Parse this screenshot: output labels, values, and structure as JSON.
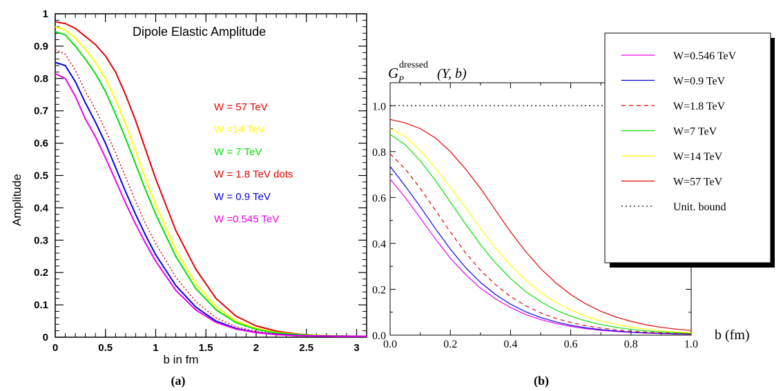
{
  "chart_data": [
    {
      "id": "a",
      "type": "line",
      "panel_label": "(a)",
      "title": "Dipole Elastic Amplitude",
      "xlabel": "b in fm",
      "ylabel": "Amplitude",
      "xlim": [
        0,
        3.1
      ],
      "ylim": [
        0,
        1.0
      ],
      "x_ticks": [
        "0",
        "0.5",
        "1",
        "1.5",
        "2",
        "2.5",
        "3"
      ],
      "y_ticks": [
        "0",
        "0.1",
        "0.2",
        "0.3",
        "0.4",
        "0.5",
        "0.6",
        "0.7",
        "0.8",
        "0.9",
        "1"
      ],
      "legend_position": "inside right",
      "series": [
        {
          "name": "W = 57 TeV",
          "color": "#e00000",
          "dash": "solid",
          "x": [
            0,
            0.1,
            0.2,
            0.3,
            0.4,
            0.5,
            0.6,
            0.7,
            0.8,
            0.9,
            1.0,
            1.2,
            1.4,
            1.6,
            1.8,
            2.0,
            2.2,
            2.4,
            2.6,
            2.8,
            3.0,
            3.1
          ],
          "y": [
            0.975,
            0.97,
            0.955,
            0.93,
            0.905,
            0.87,
            0.82,
            0.75,
            0.67,
            0.58,
            0.49,
            0.33,
            0.21,
            0.12,
            0.065,
            0.035,
            0.019,
            0.01,
            0.006,
            0.004,
            0.003,
            0.003
          ]
        },
        {
          "name": "W =14 TeV",
          "color": "#ffff00",
          "dash": "solid",
          "x": [
            0,
            0.1,
            0.2,
            0.3,
            0.4,
            0.5,
            0.6,
            0.7,
            0.8,
            0.9,
            1.0,
            1.2,
            1.4,
            1.6,
            1.8,
            2.0,
            2.2,
            2.4,
            2.6,
            2.8,
            3.0,
            3.1
          ],
          "y": [
            0.96,
            0.95,
            0.925,
            0.89,
            0.85,
            0.8,
            0.735,
            0.66,
            0.575,
            0.49,
            0.41,
            0.27,
            0.165,
            0.095,
            0.05,
            0.027,
            0.015,
            0.009,
            0.006,
            0.004,
            0.003,
            0.003
          ]
        },
        {
          "name": "W = 7 TeV",
          "color": "#00e000",
          "dash": "solid",
          "x": [
            0,
            0.1,
            0.2,
            0.3,
            0.4,
            0.5,
            0.6,
            0.7,
            0.8,
            0.9,
            1.0,
            1.2,
            1.4,
            1.6,
            1.8,
            2.0,
            2.2,
            2.4,
            2.6,
            2.8,
            3.0,
            3.1
          ],
          "y": [
            0.945,
            0.935,
            0.9,
            0.86,
            0.815,
            0.76,
            0.69,
            0.615,
            0.535,
            0.455,
            0.38,
            0.25,
            0.15,
            0.085,
            0.045,
            0.024,
            0.013,
            0.008,
            0.005,
            0.004,
            0.003,
            0.003
          ]
        },
        {
          "name": "W = 1.8 TeV dots",
          "color": "#e00000",
          "dash": "dotted",
          "x": [
            0,
            0.1,
            0.2,
            0.3,
            0.4,
            0.5,
            0.6,
            0.7,
            0.8,
            0.9,
            1.0,
            1.2,
            1.4,
            1.6,
            1.8,
            2.0,
            2.2,
            2.4,
            2.6,
            2.8,
            3.0,
            3.1
          ],
          "y": [
            0.89,
            0.875,
            0.825,
            0.76,
            0.705,
            0.64,
            0.57,
            0.495,
            0.42,
            0.35,
            0.29,
            0.185,
            0.11,
            0.06,
            0.032,
            0.018,
            0.01,
            0.006,
            0.004,
            0.003,
            0.003,
            0.003
          ]
        },
        {
          "name": "W = 0.9 TeV",
          "color": "#0000e0",
          "dash": "solid",
          "x": [
            0,
            0.1,
            0.2,
            0.3,
            0.4,
            0.5,
            0.6,
            0.7,
            0.8,
            0.9,
            1.0,
            1.2,
            1.4,
            1.6,
            1.8,
            2.0,
            2.2,
            2.4,
            2.6,
            2.8,
            3.0,
            3.1
          ],
          "y": [
            0.85,
            0.84,
            0.79,
            0.725,
            0.665,
            0.6,
            0.525,
            0.45,
            0.38,
            0.315,
            0.255,
            0.16,
            0.093,
            0.05,
            0.027,
            0.015,
            0.009,
            0.006,
            0.004,
            0.003,
            0.003,
            0.003
          ]
        },
        {
          "name": "W =0.545 TeV",
          "color": "#ee00ee",
          "dash": "solid",
          "x": [
            0,
            0.1,
            0.2,
            0.3,
            0.4,
            0.5,
            0.6,
            0.7,
            0.8,
            0.9,
            1.0,
            1.2,
            1.4,
            1.6,
            1.8,
            2.0,
            2.2,
            2.4,
            2.6,
            2.8,
            3.0,
            3.1
          ],
          "y": [
            0.815,
            0.8,
            0.745,
            0.675,
            0.62,
            0.555,
            0.485,
            0.415,
            0.35,
            0.29,
            0.235,
            0.145,
            0.084,
            0.046,
            0.025,
            0.014,
            0.008,
            0.005,
            0.004,
            0.003,
            0.003,
            0.003
          ]
        }
      ]
    },
    {
      "id": "b",
      "type": "line",
      "panel_label": "(b)",
      "ylabel_main": "G",
      "ylabel_sub": "P",
      "ylabel_sup": "dressed",
      "ylabel_args": "(Y, b)",
      "xlabel": "b",
      "xlabel_unit": "(fm)",
      "xlim": [
        0,
        1.0
      ],
      "ylim": [
        0,
        1.1
      ],
      "x_ticks": [
        "0.0",
        "0.2",
        "0.4",
        "0.6",
        "0.8",
        "1.0"
      ],
      "y_ticks": [
        "0.0",
        "0.2",
        "0.4",
        "0.6",
        "0.8",
        "1.0"
      ],
      "legend_position": "top-right",
      "series": [
        {
          "name": "W=0.546 TeV",
          "color": "#ee00ee",
          "dash": "solid",
          "x": [
            0,
            0.05,
            0.1,
            0.15,
            0.2,
            0.25,
            0.3,
            0.35,
            0.4,
            0.45,
            0.5,
            0.55,
            0.6,
            0.65,
            0.7,
            0.75,
            0.8,
            0.85,
            0.9,
            0.95,
            1.0
          ],
          "y": [
            0.68,
            0.6,
            0.51,
            0.42,
            0.335,
            0.265,
            0.205,
            0.158,
            0.12,
            0.09,
            0.068,
            0.051,
            0.038,
            0.028,
            0.021,
            0.016,
            0.012,
            0.009,
            0.007,
            0.005,
            0.004
          ]
        },
        {
          "name": "W=0.9 TeV",
          "color": "#0000e0",
          "dash": "solid",
          "x": [
            0,
            0.05,
            0.1,
            0.15,
            0.2,
            0.25,
            0.3,
            0.35,
            0.4,
            0.45,
            0.5,
            0.55,
            0.6,
            0.65,
            0.7,
            0.75,
            0.8,
            0.85,
            0.9,
            0.95,
            1.0
          ],
          "y": [
            0.735,
            0.65,
            0.56,
            0.465,
            0.375,
            0.295,
            0.23,
            0.177,
            0.135,
            0.102,
            0.077,
            0.058,
            0.043,
            0.032,
            0.024,
            0.018,
            0.013,
            0.01,
            0.008,
            0.006,
            0.005
          ]
        },
        {
          "name": "W=1.8 TeV",
          "color": "#e00000",
          "dash": "dashed",
          "x": [
            0,
            0.05,
            0.1,
            0.15,
            0.2,
            0.25,
            0.3,
            0.35,
            0.4,
            0.45,
            0.5,
            0.55,
            0.6,
            0.65,
            0.7,
            0.75,
            0.8,
            0.85,
            0.9,
            0.95,
            1.0
          ],
          "y": [
            0.79,
            0.725,
            0.64,
            0.545,
            0.45,
            0.36,
            0.283,
            0.22,
            0.168,
            0.128,
            0.097,
            0.073,
            0.055,
            0.041,
            0.031,
            0.023,
            0.017,
            0.013,
            0.01,
            0.008,
            0.006
          ]
        },
        {
          "name": "W=7 TeV",
          "color": "#00e000",
          "dash": "solid",
          "x": [
            0,
            0.05,
            0.1,
            0.15,
            0.2,
            0.25,
            0.3,
            0.35,
            0.4,
            0.45,
            0.5,
            0.55,
            0.6,
            0.65,
            0.7,
            0.75,
            0.8,
            0.85,
            0.9,
            0.95,
            1.0
          ],
          "y": [
            0.875,
            0.83,
            0.76,
            0.675,
            0.58,
            0.485,
            0.395,
            0.315,
            0.247,
            0.19,
            0.146,
            0.11,
            0.083,
            0.062,
            0.046,
            0.034,
            0.025,
            0.019,
            0.014,
            0.011,
            0.008
          ]
        },
        {
          "name": "W=14 TeV",
          "color": "#ffff00",
          "dash": "solid",
          "x": [
            0,
            0.05,
            0.1,
            0.15,
            0.2,
            0.25,
            0.3,
            0.35,
            0.4,
            0.45,
            0.5,
            0.55,
            0.6,
            0.65,
            0.7,
            0.75,
            0.8,
            0.85,
            0.9,
            0.95,
            1.0
          ],
          "y": [
            0.9,
            0.865,
            0.805,
            0.73,
            0.645,
            0.555,
            0.465,
            0.38,
            0.305,
            0.24,
            0.186,
            0.143,
            0.109,
            0.083,
            0.062,
            0.047,
            0.035,
            0.026,
            0.019,
            0.014,
            0.011
          ]
        },
        {
          "name": "W=57 TeV",
          "color": "#e00000",
          "dash": "solid",
          "x": [
            0,
            0.05,
            0.1,
            0.15,
            0.2,
            0.25,
            0.3,
            0.35,
            0.4,
            0.45,
            0.5,
            0.55,
            0.6,
            0.65,
            0.7,
            0.75,
            0.8,
            0.85,
            0.9,
            0.95,
            1.0
          ],
          "y": [
            0.94,
            0.925,
            0.9,
            0.86,
            0.8,
            0.725,
            0.64,
            0.545,
            0.45,
            0.365,
            0.29,
            0.228,
            0.177,
            0.136,
            0.104,
            0.079,
            0.06,
            0.045,
            0.034,
            0.026,
            0.02
          ]
        },
        {
          "name": "Unit. bound",
          "color": "#000000",
          "dash": "dotted",
          "constant": 1.0
        }
      ]
    }
  ]
}
